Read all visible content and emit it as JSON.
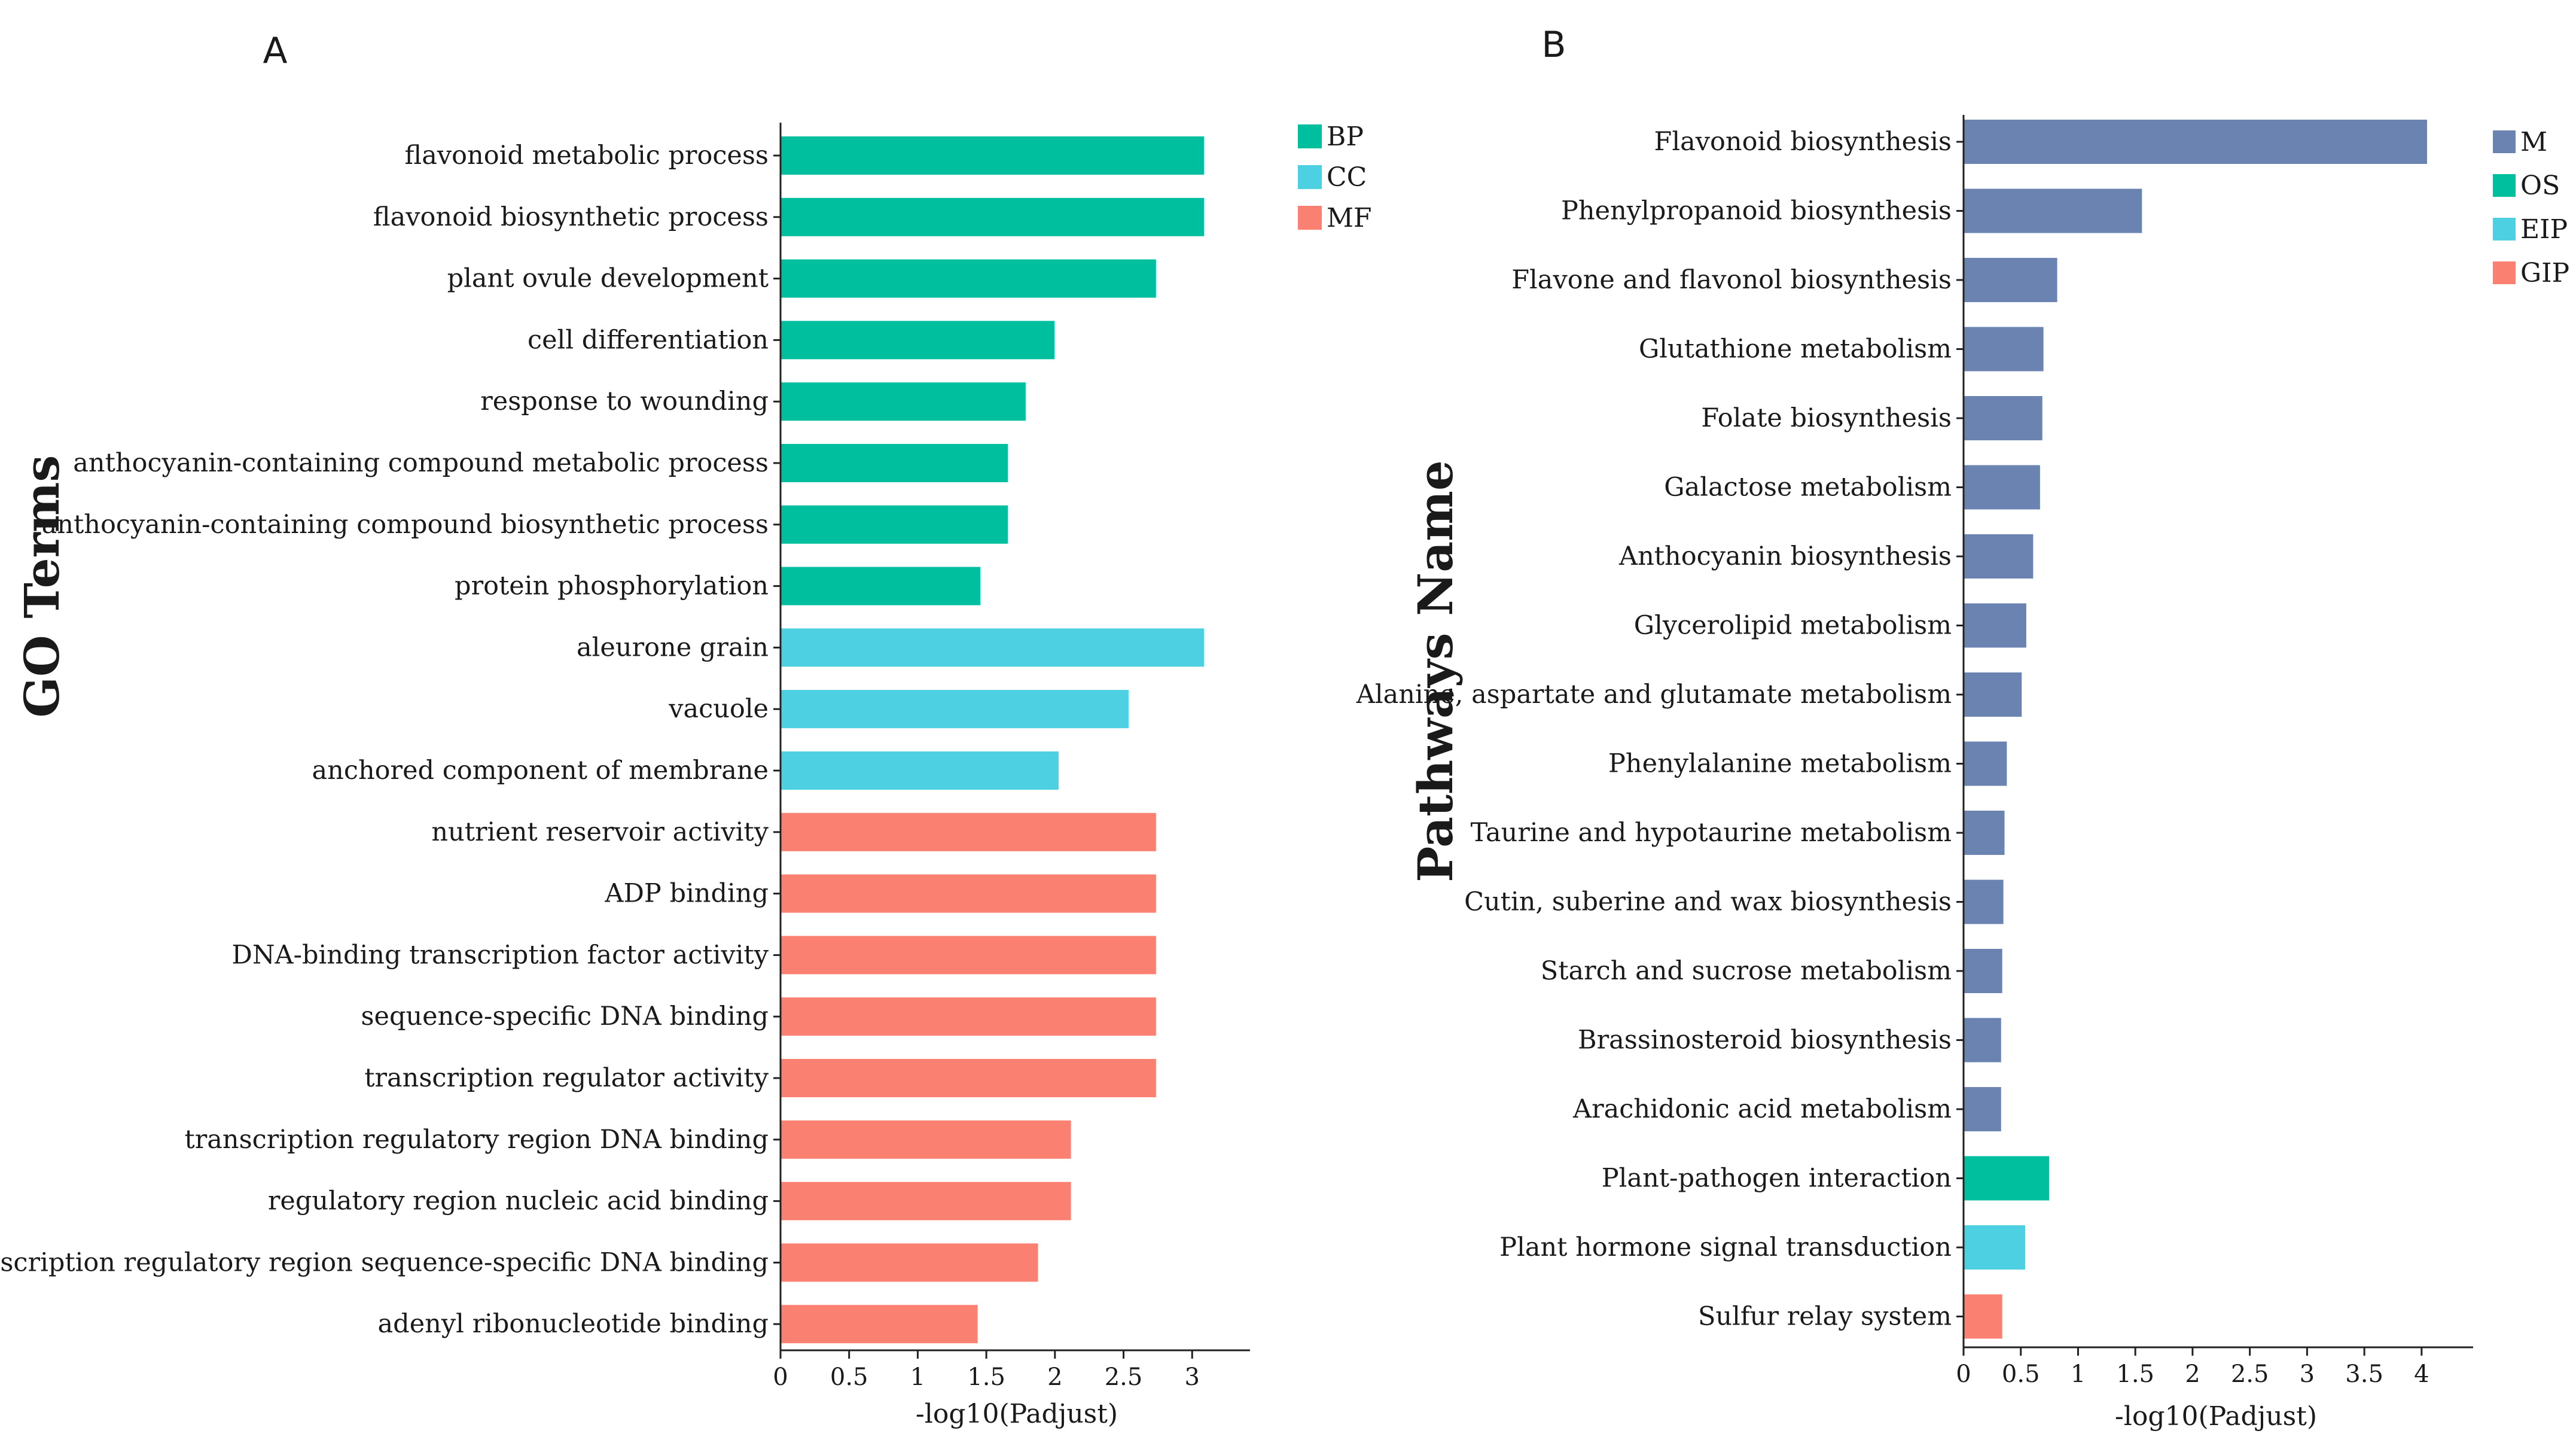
{
  "chart_data": [
    {
      "panel": "A",
      "type": "bar",
      "orientation": "horizontal",
      "ylabel": "GO Terms",
      "xlabel": "-log10(Padjust)",
      "xlim": [
        0,
        3.4
      ],
      "xticks": [
        "0",
        "0.5",
        "1",
        "1.5",
        "2",
        "2.5",
        "3"
      ],
      "legend": [
        {
          "name": "BP",
          "color": "#00bf9f"
        },
        {
          "name": "CC",
          "color": "#4dd0e1"
        },
        {
          "name": "MF",
          "color": "#fa8072"
        }
      ],
      "bars": [
        {
          "label": "flavonoid metabolic process",
          "value": 3.08,
          "group": "BP"
        },
        {
          "label": "flavonoid biosynthetic process",
          "value": 3.08,
          "group": "BP"
        },
        {
          "label": "plant ovule development",
          "value": 2.73,
          "group": "BP"
        },
        {
          "label": "cell differentiation",
          "value": 1.99,
          "group": "BP"
        },
        {
          "label": "response to wounding",
          "value": 1.78,
          "group": "BP"
        },
        {
          "label": "anthocyanin-containing compound metabolic process",
          "value": 1.65,
          "group": "BP"
        },
        {
          "label": "anthocyanin-containing compound biosynthetic process",
          "value": 1.65,
          "group": "BP"
        },
        {
          "label": "protein phosphorylation",
          "value": 1.45,
          "group": "BP"
        },
        {
          "label": "aleurone grain",
          "value": 3.08,
          "group": "CC"
        },
        {
          "label": "vacuole",
          "value": 2.53,
          "group": "CC"
        },
        {
          "label": "anchored component of membrane",
          "value": 2.02,
          "group": "CC"
        },
        {
          "label": "nutrient reservoir activity",
          "value": 2.73,
          "group": "MF"
        },
        {
          "label": "ADP binding",
          "value": 2.73,
          "group": "MF"
        },
        {
          "label": "DNA-binding transcription factor activity",
          "value": 2.73,
          "group": "MF"
        },
        {
          "label": "sequence-specific DNA binding",
          "value": 2.73,
          "group": "MF"
        },
        {
          "label": "transcription regulator activity",
          "value": 2.73,
          "group": "MF"
        },
        {
          "label": "transcription regulatory region DNA binding",
          "value": 2.11,
          "group": "MF"
        },
        {
          "label": "regulatory region nucleic acid binding",
          "value": 2.11,
          "group": "MF"
        },
        {
          "label": "transcription regulatory region sequence-specific DNA binding",
          "value": 1.87,
          "group": "MF"
        },
        {
          "label": "adenyl ribonucleotide binding",
          "value": 1.43,
          "group": "MF"
        }
      ]
    },
    {
      "panel": "B",
      "type": "bar",
      "orientation": "horizontal",
      "ylabel": "Pathways Name",
      "xlabel": "-log10(Padjust)",
      "xlim": [
        0,
        4.45
      ],
      "xticks": [
        "0",
        "0.5",
        "1",
        "1.5",
        "2",
        "2.5",
        "3",
        "3.5",
        "4"
      ],
      "legend": [
        {
          "name": "M",
          "color": "#6b83b0"
        },
        {
          "name": "OS",
          "color": "#00bf9f"
        },
        {
          "name": "EIP",
          "color": "#4dd0e1"
        },
        {
          "name": "GIP",
          "color": "#fa8072"
        }
      ],
      "bars": [
        {
          "label": "Flavonoid biosynthesis",
          "value": 4.04,
          "group": "M"
        },
        {
          "label": "Phenylpropanoid biosynthesis",
          "value": 1.55,
          "group": "M"
        },
        {
          "label": "Flavone and flavonol biosynthesis",
          "value": 0.81,
          "group": "M"
        },
        {
          "label": "Glutathione metabolism",
          "value": 0.69,
          "group": "M"
        },
        {
          "label": "Folate biosynthesis",
          "value": 0.68,
          "group": "M"
        },
        {
          "label": "Galactose metabolism",
          "value": 0.66,
          "group": "M"
        },
        {
          "label": "Anthocyanin biosynthesis",
          "value": 0.6,
          "group": "M"
        },
        {
          "label": "Glycerolipid metabolism",
          "value": 0.54,
          "group": "M"
        },
        {
          "label": "Alanine, aspartate and glutamate metabolism",
          "value": 0.5,
          "group": "M"
        },
        {
          "label": "Phenylalanine metabolism",
          "value": 0.37,
          "group": "M"
        },
        {
          "label": "Taurine and hypotaurine metabolism",
          "value": 0.35,
          "group": "M"
        },
        {
          "label": "Cutin, suberine and wax biosynthesis",
          "value": 0.34,
          "group": "M"
        },
        {
          "label": "Starch and sucrose metabolism",
          "value": 0.33,
          "group": "M"
        },
        {
          "label": "Brassinosteroid biosynthesis",
          "value": 0.32,
          "group": "M"
        },
        {
          "label": "Arachidonic acid metabolism",
          "value": 0.32,
          "group": "M"
        },
        {
          "label": "Plant-pathogen interaction",
          "value": 0.74,
          "group": "OS"
        },
        {
          "label": "Plant hormone signal transduction",
          "value": 0.53,
          "group": "EIP"
        },
        {
          "label": "Sulfur relay system",
          "value": 0.33,
          "group": "GIP"
        }
      ]
    }
  ]
}
